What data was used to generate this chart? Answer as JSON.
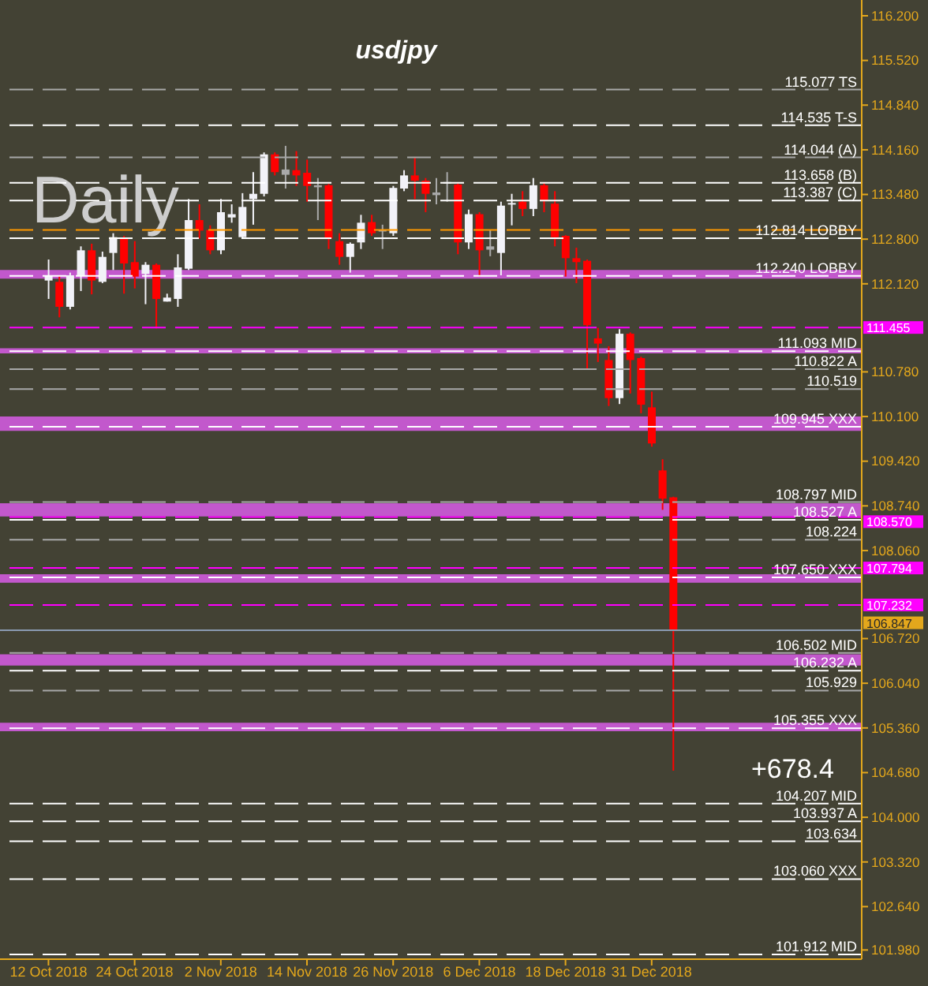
{
  "chart_data": {
    "type": "candlestick",
    "title": "usdjpy",
    "categories": [
      null,
      null,
      null,
      null,
      "12 Oct 2018",
      null,
      null,
      null,
      null,
      null,
      null,
      null,
      "24 Oct 2018",
      null,
      null,
      null,
      null,
      null,
      null,
      null,
      "2 Nov 2018",
      null,
      null,
      null,
      null,
      null,
      null,
      null,
      "14 Nov 2018",
      null,
      null,
      null,
      null,
      null,
      null,
      null,
      "26 Nov 2018",
      null,
      null,
      null,
      null,
      null,
      null,
      null,
      "6 Dec 2018",
      null,
      null,
      null,
      null,
      null,
      null,
      null,
      "18 Dec 2018",
      null,
      null,
      null,
      null,
      null,
      null,
      null,
      "31 Dec 2018",
      null,
      null,
      null,
      null,
      null,
      null,
      null,
      null,
      null,
      null,
      null,
      null,
      null,
      null,
      null,
      null,
      null,
      null,
      null
    ],
    "ohlc": [
      null,
      null,
      null,
      null,
      [
        112.17,
        112.49,
        111.89,
        112.25
      ],
      [
        112.15,
        112.25,
        111.61,
        111.77
      ],
      [
        111.77,
        112.29,
        111.73,
        112.25
      ],
      [
        112.25,
        112.69,
        112.01,
        112.63
      ],
      [
        112.63,
        112.73,
        111.96,
        112.17
      ],
      [
        112.15,
        112.61,
        112.13,
        112.53
      ],
      [
        112.59,
        112.89,
        112.33,
        112.83
      ],
      [
        112.81,
        112.85,
        111.97,
        112.43
      ],
      [
        112.45,
        112.77,
        112.05,
        112.23
      ],
      [
        112.27,
        112.45,
        111.81,
        112.41
      ],
      [
        112.41,
        112.43,
        111.44,
        111.89
      ],
      [
        111.85,
        111.97,
        111.85,
        111.91
      ],
      [
        111.89,
        112.57,
        111.77,
        112.37
      ],
      [
        112.35,
        113.41,
        112.33,
        113.09
      ],
      [
        113.09,
        113.33,
        112.81,
        112.93
      ],
      [
        112.94,
        113.01,
        112.57,
        112.63
      ],
      [
        112.63,
        113.41,
        112.57,
        113.21
      ],
      [
        113.13,
        113.33,
        113.05,
        113.18
      ],
      [
        112.83,
        113.5,
        112.81,
        113.29
      ],
      [
        113.41,
        113.82,
        113.02,
        113.49
      ],
      [
        113.49,
        114.12,
        113.45,
        114.09
      ],
      [
        114.09,
        114.12,
        113.77,
        113.82
      ],
      [
        113.78,
        114.22,
        113.57,
        113.86
      ],
      [
        113.85,
        114.14,
        113.61,
        113.77
      ],
      [
        113.81,
        114.01,
        113.37,
        113.61
      ],
      [
        113.59,
        113.73,
        113.09,
        113.62
      ],
      [
        113.62,
        113.64,
        112.65,
        112.81
      ],
      [
        112.77,
        112.89,
        112.41,
        112.53
      ],
      [
        112.53,
        112.75,
        112.29,
        112.73
      ],
      [
        112.75,
        113.17,
        112.65,
        113.05
      ],
      [
        113.06,
        113.17,
        112.85,
        112.89
      ],
      [
        112.92,
        113.02,
        112.65,
        112.94
      ],
      [
        112.89,
        113.61,
        112.85,
        113.58
      ],
      [
        113.57,
        113.85,
        113.53,
        113.77
      ],
      [
        113.77,
        114.05,
        113.41,
        113.69
      ],
      [
        113.69,
        113.73,
        113.21,
        113.49
      ],
      [
        113.47,
        113.73,
        113.33,
        113.51
      ],
      [
        113.65,
        113.82,
        113.37,
        113.67
      ],
      [
        113.63,
        113.65,
        112.57,
        112.75
      ],
      [
        112.75,
        113.25,
        112.65,
        113.18
      ],
      [
        113.18,
        113.21,
        112.23,
        112.63
      ],
      [
        112.64,
        112.94,
        112.54,
        112.69
      ],
      [
        112.59,
        113.37,
        112.25,
        113.31
      ],
      [
        113.33,
        113.49,
        113.01,
        113.35
      ],
      [
        113.37,
        113.53,
        113.15,
        113.26
      ],
      [
        113.26,
        113.73,
        113.15,
        113.62
      ],
      [
        113.62,
        113.65,
        113.21,
        113.39
      ],
      [
        113.34,
        113.53,
        112.69,
        112.83
      ],
      [
        112.85,
        112.86,
        112.23,
        112.51
      ],
      [
        112.51,
        112.67,
        112.13,
        112.45
      ],
      [
        112.47,
        112.49,
        110.81,
        111.49
      ],
      [
        111.29,
        111.45,
        110.93,
        111.21
      ],
      [
        110.96,
        111.17,
        110.26,
        110.38
      ],
      [
        110.38,
        111.43,
        110.29,
        111.36
      ],
      [
        111.36,
        111.38,
        110.45,
        110.96
      ],
      [
        110.99,
        111.01,
        110.15,
        110.28
      ],
      [
        110.24,
        110.48,
        109.64,
        109.69
      ],
      [
        109.28,
        109.45,
        108.68,
        108.85
      ],
      [
        108.87,
        108.88,
        104.71,
        106.85
      ],
      null,
      null,
      null,
      null,
      null,
      null,
      null,
      null,
      null,
      null,
      null,
      null,
      null,
      null,
      null,
      null,
      null
    ],
    "colors": [
      null,
      null,
      null,
      null,
      "#f2f2f8",
      "#ff0000",
      "#f2f2f8",
      "#f2f2f8",
      "#ff0000",
      "#f2f2f8",
      "#f2f2f8",
      "#ff0000",
      "#ff0000",
      "#f2f2f8",
      "#ff0000",
      "#f2f2f8",
      "#f2f2f8",
      "#f2f2f8",
      "#ff0000",
      "#ff0000",
      "#f2f2f8",
      "#f2f2f8",
      "#f2f2f8",
      "#f2f2f8",
      "#f2f2f8",
      "#ff0000",
      "#a9a9a9",
      "#ff0000",
      "#ff0000",
      "#a9a9a9",
      "#ff0000",
      "#ff0000",
      "#f2f2f8",
      "#f2f2f8",
      "#ff0000",
      "#a9a9a9",
      "#f2f2f8",
      "#f2f2f8",
      "#ff0000",
      "#ff0000",
      "#a9a9a9",
      "#a9a9a9",
      "#ff0000",
      "#f2f2f8",
      "#ff0000",
      "#a9a9a9",
      "#f2f2f8",
      "#f2f2f8",
      "#ff0000",
      "#f2f2f8",
      "#ff0000",
      "#ff0000",
      "#ff0000",
      "#ff0000",
      "#ff0000",
      "#ff0000",
      "#ff0000",
      "#f2f2f8",
      "#ff0000",
      "#ff0000",
      "#ff0000",
      "#ff0000",
      "#ff0000",
      null,
      null,
      null,
      null,
      null,
      null,
      null,
      null,
      null,
      null,
      null,
      null,
      null,
      null,
      null,
      null,
      null
    ],
    "ylim": [
      101.84,
      116.44
    ],
    "yticks": [
      {
        "value": 116.2,
        "label": "116.200"
      },
      {
        "value": 115.52,
        "label": "115.520"
      },
      {
        "value": 114.84,
        "label": "114.840"
      },
      {
        "value": 114.16,
        "label": "114.160"
      },
      {
        "value": 113.48,
        "label": "113.480"
      },
      {
        "value": 112.8,
        "label": "112.800"
      },
      {
        "value": 112.12,
        "label": "112.120"
      },
      {
        "value": 110.78,
        "label": "110.780"
      },
      {
        "value": 110.1,
        "label": "110.100"
      },
      {
        "value": 109.42,
        "label": "109.420"
      },
      {
        "value": 108.74,
        "label": "108.740"
      },
      {
        "value": 108.06,
        "label": "108.060"
      },
      {
        "value": 106.72,
        "label": "106.720"
      },
      {
        "value": 106.04,
        "label": "106.040"
      },
      {
        "value": 105.36,
        "label": "105.360"
      },
      {
        "value": 104.68,
        "label": "104.680"
      },
      {
        "value": 104.0,
        "label": "104.000"
      },
      {
        "value": 103.32,
        "label": "103.320"
      },
      {
        "value": 102.64,
        "label": "102.640"
      },
      {
        "value": 101.98,
        "label": "101.980"
      }
    ],
    "bands": [
      {
        "axis": "y",
        "from": 112.2,
        "to": 112.33,
        "color": "#c258cc"
      },
      {
        "axis": "y",
        "from": 111.06,
        "to": 111.14,
        "color": "#c258cc"
      },
      {
        "axis": "y",
        "from": 109.88,
        "to": 110.1,
        "color": "#c258cc"
      },
      {
        "axis": "y",
        "from": 108.58,
        "to": 108.78,
        "color": "#c258cc"
      },
      {
        "axis": "y",
        "from": 107.57,
        "to": 107.7,
        "color": "#c258cc"
      },
      {
        "axis": "y",
        "from": 106.31,
        "to": 106.48,
        "color": "#c258cc"
      },
      {
        "axis": "y",
        "from": 105.31,
        "to": 105.44,
        "color": "#c258cc"
      }
    ],
    "ref_lines": [
      {
        "axis": "y",
        "value": 115.077,
        "label": "115.077 TS",
        "color": "#a8a8a8",
        "line_style": "dashed"
      },
      {
        "axis": "y",
        "value": 114.535,
        "label": "114.535 T-S",
        "color": "#ffffff",
        "line_style": "dashed"
      },
      {
        "axis": "y",
        "value": 114.044,
        "label": "114.044 (A)",
        "color": "#a8a8a8",
        "line_style": "dashed"
      },
      {
        "axis": "y",
        "value": 113.658,
        "label": "113.658 (B)",
        "color": "#ffffff",
        "line_style": "dashed"
      },
      {
        "axis": "y",
        "value": 113.387,
        "label": "113.387 (C)",
        "color": "#ffffff",
        "line_style": "dashed"
      },
      {
        "axis": "y",
        "value": 112.94,
        "color": "#ff9900",
        "line_style": "dashed"
      },
      {
        "axis": "y",
        "value": 112.814,
        "label": "112.814 LOBBY",
        "color": "#ffffff",
        "line_style": "dashed"
      },
      {
        "axis": "y",
        "value": 112.24,
        "label": "112.240 LOBBY",
        "color": "#ffffff",
        "line_style": "dashed"
      },
      {
        "axis": "y",
        "value": 111.455,
        "label": "111.455",
        "color": "#ff00ff",
        "line_style": "dashed"
      },
      {
        "axis": "y",
        "value": 111.093,
        "label": "111.093 MID",
        "color": "#ffffff",
        "line_style": "dashed"
      },
      {
        "axis": "y",
        "value": 110.822,
        "label": "110.822 A",
        "color": "#a8a8a8",
        "line_style": "dashed"
      },
      {
        "axis": "y",
        "value": 110.519,
        "label": "110.519",
        "color": "#a8a8a8",
        "line_style": "dashed"
      },
      {
        "axis": "y",
        "value": 109.945,
        "label": "109.945 XXX",
        "color": "#ffffff",
        "line_style": "dashed"
      },
      {
        "axis": "y",
        "value": 108.797,
        "label": "108.797 MID",
        "color": "#a8a8a8",
        "line_style": "dashed"
      },
      {
        "axis": "y",
        "value": 108.57,
        "label": "108.570",
        "color": "#ff00ff",
        "line_style": "dashed"
      },
      {
        "axis": "y",
        "value": 108.527,
        "label": "108.527 A",
        "color": "#ffffff",
        "line_style": "dashed"
      },
      {
        "axis": "y",
        "value": 108.224,
        "label": "108.224",
        "color": "#a8a8a8",
        "line_style": "dashed"
      },
      {
        "axis": "y",
        "value": 107.794,
        "label": "107.794",
        "color": "#ff00ff",
        "line_style": "dashed"
      },
      {
        "axis": "y",
        "value": 107.65,
        "label": "107.650 XXX",
        "color": "#ffffff",
        "line_style": "dashed"
      },
      {
        "axis": "y",
        "value": 107.232,
        "label": "107.232",
        "color": "#ff00ff",
        "line_style": "dashed"
      },
      {
        "axis": "y",
        "value": 106.847,
        "label": "106.847",
        "color": "#8a9ab0",
        "line_style": "solid"
      },
      {
        "axis": "y",
        "value": 106.502,
        "label": "106.502 MID",
        "color": "#a8a8a8",
        "line_style": "dashed"
      },
      {
        "axis": "y",
        "value": 106.232,
        "label": "106.232 A",
        "color": "#ffffff",
        "line_style": "dashed"
      },
      {
        "axis": "y",
        "value": 105.929,
        "label": "105.929",
        "color": "#a8a8a8",
        "line_style": "dashed"
      },
      {
        "axis": "y",
        "value": 105.355,
        "label": "105.355 XXX",
        "color": "#ffffff",
        "line_style": "dashed"
      },
      {
        "axis": "y",
        "value": 104.207,
        "label": "104.207 MID",
        "color": "#ffffff",
        "line_style": "dashed"
      },
      {
        "axis": "y",
        "value": 103.937,
        "label": "103.937 A",
        "color": "#ffffff",
        "line_style": "dashed"
      },
      {
        "axis": "y",
        "value": 103.634,
        "label": "103.634",
        "color": "#ffffff",
        "line_style": "dashed"
      },
      {
        "axis": "y",
        "value": 103.06,
        "label": "103.060 XXX",
        "color": "#ffffff",
        "line_style": "dashed"
      },
      {
        "axis": "y",
        "value": 101.912,
        "label": "101.912 MID",
        "color": "#ffffff",
        "line_style": "dashed"
      }
    ],
    "annotations": [
      "Daily",
      "+678.4"
    ]
  }
}
